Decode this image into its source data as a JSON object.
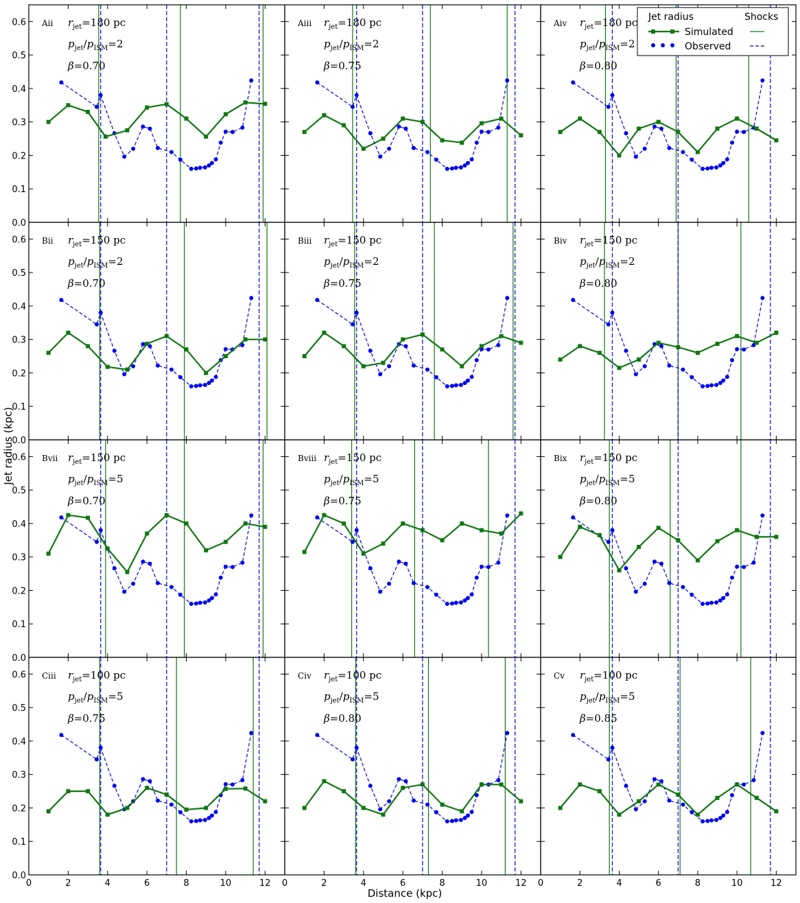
{
  "chart_data": {
    "type": "line",
    "xlabel": "Distance (kpc)",
    "ylabel": "Jet radius (kpc)",
    "xlim": [
      0,
      13
    ],
    "ylim": [
      0,
      0.65
    ],
    "xticks": [
      0,
      2,
      4,
      6,
      8,
      10,
      12
    ],
    "yticks": [
      0,
      0.1,
      0.2,
      0.3,
      0.4,
      0.5,
      0.6
    ],
    "xtick_labels": [
      "0",
      "2",
      "4",
      "6",
      "8",
      "10",
      "12"
    ],
    "ytick_labels": [
      "0.0",
      "0.1",
      "0.2",
      "0.3",
      "0.4",
      "0.5",
      "0.6"
    ],
    "legend": {
      "position": "top-right",
      "title_left": "Jet radius",
      "title_right": "Shocks",
      "simulated_label": "Simulated",
      "observed_label": "Observed"
    },
    "colors": {
      "simulated": "#117711",
      "observed": "#0000ee"
    },
    "observed": {
      "x": [
        1.65,
        3.45,
        3.65,
        4.35,
        4.85,
        5.3,
        5.8,
        6.15,
        6.55,
        7.25,
        7.7,
        8.25,
        8.5,
        8.7,
        8.95,
        9.15,
        9.3,
        9.5,
        9.75,
        10.0,
        10.35,
        10.85,
        11.3
      ],
      "y": [
        0.418,
        0.345,
        0.38,
        0.266,
        0.196,
        0.22,
        0.286,
        0.28,
        0.222,
        0.21,
        0.187,
        0.16,
        0.161,
        0.163,
        0.164,
        0.17,
        0.177,
        0.188,
        0.238,
        0.271,
        0.27,
        0.283,
        0.424
      ]
    },
    "observed_shocks": [
      3.65,
      7.0,
      11.7
    ],
    "panels": [
      {
        "id": "Aii",
        "r_jet": "180",
        "p_ratio": "2",
        "beta": "0.70",
        "sim_x": [
          1,
          2,
          3,
          3.9,
          5,
          6,
          7,
          8,
          9,
          10,
          11,
          12
        ],
        "sim_y": [
          0.3,
          0.35,
          0.33,
          0.256,
          0.275,
          0.343,
          0.353,
          0.31,
          0.256,
          0.323,
          0.358,
          0.354
        ],
        "sim_shocks": [
          3.55,
          7.7,
          11.9
        ]
      },
      {
        "id": "Aiii",
        "r_jet": "180",
        "p_ratio": "2",
        "beta": "0.75",
        "sim_x": [
          1,
          2,
          3,
          4,
          5,
          6,
          7,
          8,
          9,
          10,
          11,
          12
        ],
        "sim_y": [
          0.27,
          0.32,
          0.29,
          0.22,
          0.25,
          0.31,
          0.3,
          0.245,
          0.238,
          0.296,
          0.31,
          0.26
        ],
        "sim_shocks": [
          3.45,
          7.4,
          11.3
        ]
      },
      {
        "id": "Aiv",
        "r_jet": "180",
        "p_ratio": "2",
        "beta": "0.80",
        "sim_x": [
          1,
          2,
          3,
          4,
          5,
          6,
          7,
          8,
          9,
          10,
          11,
          12
        ],
        "sim_y": [
          0.27,
          0.31,
          0.27,
          0.2,
          0.28,
          0.3,
          0.27,
          0.21,
          0.28,
          0.31,
          0.28,
          0.245
        ],
        "sim_shocks": [
          3.3,
          6.9,
          10.6
        ]
      },
      {
        "id": "Bii",
        "r_jet": "150",
        "p_ratio": "2",
        "beta": "0.70",
        "sim_x": [
          1,
          2,
          3,
          4,
          5,
          6,
          7,
          8,
          9,
          10,
          11,
          12
        ],
        "sim_y": [
          0.26,
          0.32,
          0.28,
          0.218,
          0.21,
          0.287,
          0.31,
          0.27,
          0.2,
          0.25,
          0.3,
          0.3
        ],
        "sim_shocks": [
          3.6,
          7.9,
          12.1
        ]
      },
      {
        "id": "Biii",
        "r_jet": "150",
        "p_ratio": "2",
        "beta": "0.75",
        "sim_x": [
          1,
          2,
          3,
          4,
          5,
          6,
          7,
          8,
          9,
          10,
          11,
          12
        ],
        "sim_y": [
          0.25,
          0.32,
          0.28,
          0.22,
          0.23,
          0.3,
          0.315,
          0.27,
          0.22,
          0.28,
          0.31,
          0.29
        ],
        "sim_shocks": [
          3.55,
          7.6,
          11.6
        ]
      },
      {
        "id": "Biv",
        "r_jet": "150",
        "p_ratio": "2",
        "beta": "0.80",
        "sim_x": [
          1,
          2,
          3,
          4,
          5,
          6,
          7,
          8,
          9,
          10,
          11,
          12
        ],
        "sim_y": [
          0.24,
          0.28,
          0.26,
          0.215,
          0.24,
          0.29,
          0.277,
          0.26,
          0.287,
          0.31,
          0.29,
          0.32
        ],
        "sim_shocks": [
          3.25,
          7.0,
          10.2
        ]
      },
      {
        "id": "Bvii",
        "r_jet": "150",
        "p_ratio": "5",
        "beta": "0.70",
        "sim_x": [
          1,
          2,
          3,
          4,
          5,
          6,
          7,
          8,
          9,
          10,
          11,
          12
        ],
        "sim_y": [
          0.31,
          0.425,
          0.417,
          0.325,
          0.255,
          0.37,
          0.425,
          0.4,
          0.32,
          0.345,
          0.4,
          0.39
        ],
        "sim_shocks": [
          3.9,
          7.9,
          11.9
        ]
      },
      {
        "id": "Bviii",
        "r_jet": "150",
        "p_ratio": "5",
        "beta": "0.75",
        "sim_x": [
          1,
          2,
          3,
          4,
          5,
          6,
          7,
          8,
          9,
          10,
          11,
          12
        ],
        "sim_y": [
          0.315,
          0.425,
          0.4,
          0.31,
          0.34,
          0.4,
          0.38,
          0.35,
          0.4,
          0.38,
          0.37,
          0.43
        ],
        "sim_shocks": [
          3.4,
          6.6,
          10.35
        ]
      },
      {
        "id": "Bix",
        "r_jet": "150",
        "p_ratio": "5",
        "beta": "0.80",
        "sim_x": [
          1,
          2,
          3,
          4,
          5,
          6,
          7,
          8,
          9,
          10,
          11,
          12
        ],
        "sim_y": [
          0.3,
          0.39,
          0.365,
          0.26,
          0.33,
          0.387,
          0.35,
          0.29,
          0.347,
          0.38,
          0.36,
          0.36
        ],
        "sim_shocks": [
          3.5,
          6.6,
          10.2
        ]
      },
      {
        "id": "Ciii",
        "r_jet": "100",
        "p_ratio": "5",
        "beta": "0.75",
        "sim_x": [
          1,
          2,
          3,
          4,
          5,
          6,
          7,
          8,
          9,
          10,
          11,
          12
        ],
        "sim_y": [
          0.19,
          0.25,
          0.25,
          0.18,
          0.2,
          0.26,
          0.24,
          0.195,
          0.2,
          0.257,
          0.258,
          0.22
        ],
        "sim_shocks": [
          3.6,
          7.5,
          11.4
        ]
      },
      {
        "id": "Civ",
        "r_jet": "100",
        "p_ratio": "5",
        "beta": "0.80",
        "sim_x": [
          1,
          2,
          3,
          4,
          5,
          6,
          7,
          8,
          9,
          10,
          11,
          12
        ],
        "sim_y": [
          0.2,
          0.28,
          0.25,
          0.2,
          0.18,
          0.26,
          0.27,
          0.21,
          0.19,
          0.27,
          0.27,
          0.22
        ],
        "sim_shocks": [
          3.6,
          7.3,
          11.2
        ]
      },
      {
        "id": "Cv",
        "r_jet": "100",
        "p_ratio": "5",
        "beta": "0.85",
        "sim_x": [
          1,
          2,
          3,
          4,
          5,
          6,
          7,
          8,
          9,
          10,
          11,
          12
        ],
        "sim_y": [
          0.2,
          0.27,
          0.25,
          0.18,
          0.22,
          0.27,
          0.24,
          0.18,
          0.23,
          0.27,
          0.23,
          0.19
        ],
        "sim_shocks": [
          3.5,
          7.1,
          10.7
        ]
      }
    ],
    "annotation_units": {
      "r_jet": "pc",
      "r_name": "r",
      "r_sub": "jet",
      "p_name": "p",
      "p_sub_top": "jet",
      "p_sub_bottom": "ISM",
      "beta_name": "β"
    }
  }
}
